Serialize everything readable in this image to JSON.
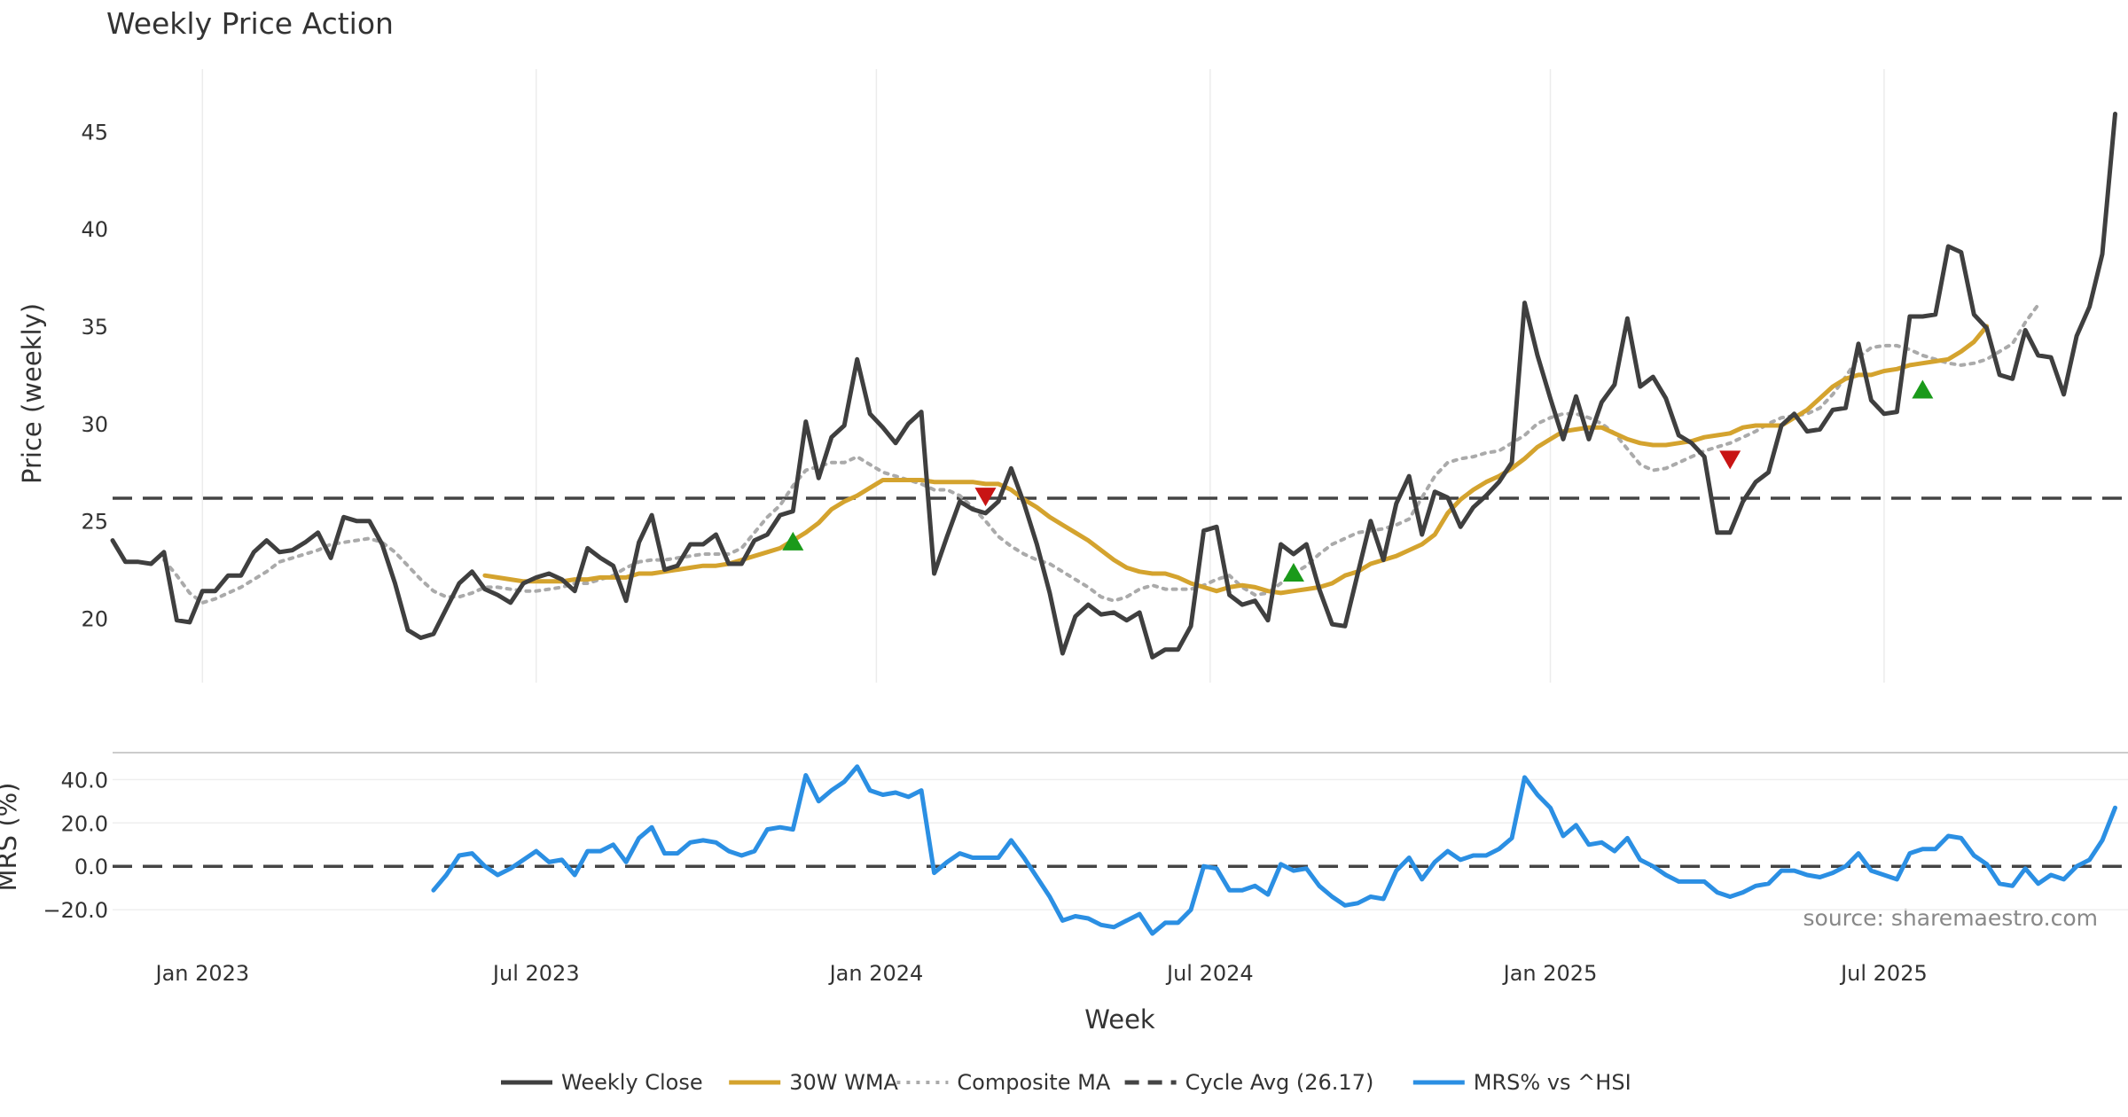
{
  "chart_data": {
    "type": "line",
    "title": "Weekly Price Action",
    "xlabel": "Week",
    "x_ticks": [
      {
        "label": "Jan 2023",
        "t": 7
      },
      {
        "label": "Jul 2023",
        "t": 33
      },
      {
        "label": "Jan 2024",
        "t": 59.5
      },
      {
        "label": "Jul 2024",
        "t": 85.5
      },
      {
        "label": "Jan 2025",
        "t": 112
      },
      {
        "label": "Jul 2025",
        "t": 138
      }
    ],
    "x_range": [
      0,
      157
    ],
    "price_panel": {
      "ylabel": "Price (weekly)",
      "ylim": [
        16.7,
        48.2
      ],
      "y_ticks": [
        20,
        25,
        30,
        35,
        40,
        45
      ],
      "series": [
        {
          "name": "Weekly Close",
          "color": "#3f3f3f",
          "style": "solid",
          "start": 0,
          "values": [
            24.0,
            22.9,
            22.9,
            22.8,
            23.4,
            19.9,
            19.8,
            21.4,
            21.4,
            22.2,
            22.2,
            23.4,
            24.0,
            23.4,
            23.5,
            23.9,
            24.4,
            23.1,
            25.2,
            25.0,
            25.0,
            23.8,
            21.8,
            19.4,
            19.0,
            19.2,
            20.5,
            21.8,
            22.4,
            21.5,
            21.2,
            20.8,
            21.8,
            22.1,
            22.3,
            22.0,
            21.4,
            23.6,
            23.1,
            22.7,
            20.9,
            23.9,
            25.3,
            22.5,
            22.7,
            23.8,
            23.8,
            24.3,
            22.8,
            22.8,
            24.0,
            24.3,
            25.3,
            25.5,
            30.1,
            27.2,
            29.3,
            29.9,
            33.3,
            30.5,
            29.8,
            29.0,
            30.0,
            30.6,
            22.3,
            24.2,
            26.0,
            25.6,
            25.4,
            26.0,
            27.7,
            25.9,
            23.8,
            21.3,
            18.2,
            20.1,
            20.7,
            20.2,
            20.3,
            19.9,
            20.3,
            18.0,
            18.4,
            18.4,
            19.6,
            24.5,
            24.7,
            21.2,
            20.7,
            20.9,
            19.9,
            23.8,
            23.3,
            23.8,
            21.5,
            19.7,
            19.6,
            22.3,
            25.0,
            23.0,
            25.9,
            27.3,
            24.3,
            26.5,
            26.2,
            24.7,
            25.7,
            26.3,
            27.0,
            28.0,
            36.2,
            33.5,
            31.3,
            29.2,
            31.4,
            29.2,
            31.1,
            32.0,
            35.4,
            31.9,
            32.4,
            31.3,
            29.4,
            29.0,
            28.3,
            24.4,
            24.4,
            26.0,
            27.0,
            27.5,
            29.9,
            30.5,
            29.6,
            29.7,
            30.7,
            30.8,
            34.1,
            31.2,
            30.5,
            30.6,
            35.5,
            35.5,
            35.6,
            39.1,
            38.8,
            35.6,
            34.9,
            32.5,
            32.3,
            34.8,
            33.5,
            33.4,
            31.5,
            34.5,
            36.0,
            38.7,
            45.9
          ]
        },
        {
          "name": "30W WMA",
          "color": "#d4a32e",
          "style": "solid",
          "start": 29,
          "values": [
            22.2,
            22.1,
            22.0,
            21.9,
            21.9,
            21.9,
            21.9,
            22.0,
            22.0,
            22.1,
            22.1,
            22.1,
            22.3,
            22.3,
            22.4,
            22.5,
            22.6,
            22.7,
            22.7,
            22.8,
            23.0,
            23.2,
            23.4,
            23.6,
            24.0,
            24.4,
            24.9,
            25.6,
            26.0,
            26.3,
            26.7,
            27.1,
            27.1,
            27.1,
            27.1,
            27.0,
            27.0,
            27.0,
            27.0,
            26.9,
            26.9,
            26.6,
            26.1,
            25.7,
            25.2,
            24.8,
            24.4,
            24.0,
            23.5,
            23.0,
            22.6,
            22.4,
            22.3,
            22.3,
            22.1,
            21.8,
            21.6,
            21.4,
            21.6,
            21.7,
            21.6,
            21.4,
            21.3,
            21.4,
            21.5,
            21.6,
            21.8,
            22.2,
            22.4,
            22.8,
            23.0,
            23.2,
            23.5,
            23.8,
            24.3,
            25.4,
            26.1,
            26.6,
            27.0,
            27.3,
            27.7,
            28.2,
            28.8,
            29.2,
            29.6,
            29.7,
            29.8,
            29.8,
            29.5,
            29.2,
            29.0,
            28.9,
            28.9,
            29.0,
            29.1,
            29.3,
            29.4,
            29.5,
            29.8,
            29.9,
            29.9,
            29.9,
            30.3,
            30.7,
            31.3,
            31.9,
            32.3,
            32.5,
            32.5,
            32.7,
            32.8,
            33.0,
            33.1,
            33.2,
            33.3,
            33.7,
            34.2,
            35.0
          ]
        },
        {
          "name": "Composite MA",
          "color": "#aaaaaa",
          "style": "dotted",
          "start": 4,
          "values": [
            23.0,
            22.2,
            21.3,
            20.8,
            21.0,
            21.3,
            21.6,
            22.0,
            22.4,
            22.9,
            23.1,
            23.3,
            23.5,
            23.8,
            23.9,
            24.0,
            24.1,
            23.9,
            23.4,
            22.7,
            22.0,
            21.4,
            21.1,
            21.1,
            21.3,
            21.6,
            21.6,
            21.5,
            21.4,
            21.4,
            21.5,
            21.6,
            21.8,
            21.8,
            22.0,
            22.2,
            22.6,
            22.9,
            23.0,
            23.0,
            23.1,
            23.2,
            23.3,
            23.3,
            23.3,
            23.6,
            24.4,
            25.2,
            25.8,
            26.8,
            27.6,
            27.8,
            28.0,
            28.0,
            28.3,
            27.9,
            27.5,
            27.3,
            27.1,
            26.9,
            26.6,
            26.6,
            26.3,
            25.7,
            25.0,
            24.2,
            23.7,
            23.3,
            23.0,
            22.8,
            22.4,
            22.0,
            21.6,
            21.1,
            20.9,
            21.1,
            21.5,
            21.7,
            21.5,
            21.5,
            21.5,
            21.7,
            22.0,
            22.2,
            21.6,
            21.2,
            21.3,
            21.8,
            22.3,
            22.7,
            23.3,
            23.8,
            24.1,
            24.4,
            24.5,
            24.6,
            24.8,
            25.1,
            26.2,
            27.3,
            28.0,
            28.2,
            28.3,
            28.5,
            28.6,
            29.0,
            29.4,
            30.0,
            30.3,
            30.5,
            30.5,
            30.3,
            30.0,
            29.5,
            28.7,
            27.9,
            27.6,
            27.7,
            28.0,
            28.3,
            28.6,
            28.8,
            29.0,
            29.3,
            29.6,
            30.0,
            30.3,
            30.4,
            30.5,
            30.8,
            31.5,
            32.4,
            33.4,
            33.9,
            34.0,
            34.0,
            33.8,
            33.5,
            33.3,
            33.1,
            33.0,
            33.1,
            33.3,
            33.7,
            34.1,
            35.2,
            36.1
          ]
        },
        {
          "name": "Cycle Avg (26.17)",
          "color": "#444444",
          "style": "dashed",
          "constant": 26.17
        }
      ],
      "buy_signals": [
        {
          "t": 53,
          "y": 23.9
        },
        {
          "t": 92,
          "y": 22.3
        },
        {
          "t": 141,
          "y": 31.7
        }
      ],
      "sell_signals": [
        {
          "t": 68,
          "y": 26.3
        },
        {
          "t": 126,
          "y": 28.2
        }
      ]
    },
    "mrs_panel": {
      "ylabel": "MRS (%)",
      "ylim": [
        -33,
        52
      ],
      "y_ticks": [
        {
          "value": -20,
          "label": "−20.0"
        },
        {
          "value": 0,
          "label": "0.0"
        },
        {
          "value": 20,
          "label": "20.0"
        },
        {
          "value": 40,
          "label": "40.0"
        }
      ],
      "series": [
        {
          "name": "MRS% vs ^HSI",
          "color": "#2b8fe3",
          "style": "solid",
          "start": 25,
          "values": [
            -11,
            -4,
            5,
            6,
            0,
            -4,
            -1,
            3,
            7,
            2,
            3,
            -4,
            7,
            7,
            10,
            2,
            13,
            18,
            6,
            6,
            11,
            12,
            11,
            7,
            5,
            7,
            17,
            18,
            17,
            42,
            30,
            35,
            39,
            46,
            35,
            33,
            34,
            32,
            35,
            -3,
            2,
            6,
            4,
            4,
            4,
            12,
            4,
            -5,
            -14,
            -25,
            -23,
            -24,
            -27,
            -28,
            -25,
            -22,
            -31,
            -26,
            -26,
            -20,
            0,
            -1,
            -11,
            -11,
            -9,
            -13,
            1,
            -2,
            -1,
            -9,
            -14,
            -18,
            -17,
            -14,
            -15,
            -2,
            4,
            -6,
            2,
            7,
            3,
            5,
            5,
            8,
            13,
            41,
            33,
            27,
            14,
            19,
            10,
            11,
            7,
            13,
            3,
            0,
            -4,
            -7,
            -7,
            -7,
            -12,
            -14,
            -12,
            -9,
            -8,
            -2,
            -2,
            -4,
            -5,
            -3,
            0,
            6,
            -2,
            -4,
            -6,
            6,
            8,
            8,
            14,
            13,
            5,
            1,
            -8,
            -9,
            -1,
            -8,
            -4,
            -6,
            0,
            3,
            12,
            27
          ]
        },
        {
          "name": "zero line",
          "color": "#444444",
          "style": "dashed",
          "constant": 0
        }
      ]
    },
    "legend": {
      "position": "bottom-center",
      "entries": [
        {
          "label": "Weekly Close",
          "color": "#3f3f3f",
          "style": "solid"
        },
        {
          "label": "30W WMA",
          "color": "#d4a32e",
          "style": "solid"
        },
        {
          "label": "Composite MA",
          "color": "#aaaaaa",
          "style": "dotted"
        },
        {
          "label": "Cycle Avg (26.17)",
          "color": "#444444",
          "style": "dashed"
        },
        {
          "label": "MRS% vs ^HSI",
          "color": "#2b8fe3",
          "style": "solid"
        }
      ]
    },
    "signal_colors": {
      "buy": "#1a9a1a",
      "sell": "#c81414"
    },
    "source": "source: sharemaestro.com"
  }
}
